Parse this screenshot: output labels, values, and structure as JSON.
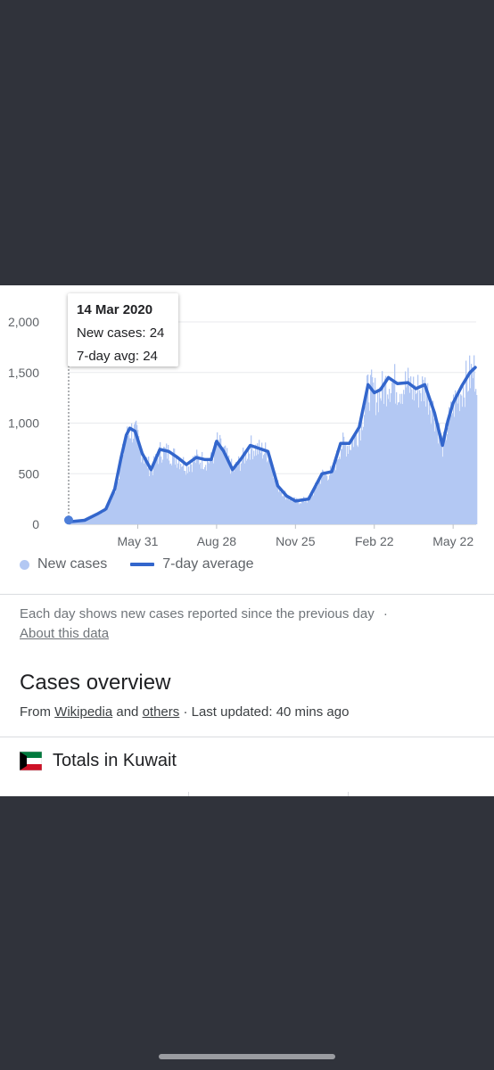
{
  "colors": {
    "background": "#30333b",
    "card": "#ffffff",
    "bar_fill": "#b3c8f3",
    "average_line": "#3366cc",
    "text_primary": "#202124",
    "text_secondary": "#70757a"
  },
  "tooltip": {
    "date": "14 Mar 2020",
    "new_cases": "New cases: 24",
    "avg": "7-day avg: 24"
  },
  "legend": {
    "new_cases": "New cases",
    "average": "7-day average"
  },
  "note": {
    "text": "Each day shows new cases reported since the previous day",
    "separator": "·",
    "about_link": "About this data"
  },
  "overview": {
    "title": "Cases overview",
    "from": "From",
    "wikipedia": "Wikipedia",
    "and": "and",
    "others": "others",
    "updated": "· Last updated: 40 mins ago"
  },
  "totals": {
    "label": "Totals in Kuwait",
    "flag_icon": "kuwait-flag-icon"
  },
  "chart_data": {
    "type": "area",
    "ylim": [
      0,
      2000
    ],
    "y_ticks": [
      "0",
      "500",
      "1,000",
      "1,500",
      "2,000"
    ],
    "x_tick_labels": [
      "May 31",
      "Aug 28",
      "Nov 25",
      "Feb 22",
      "May 22"
    ],
    "grid": true,
    "legend_position": "bottom-left",
    "series": [
      {
        "name": "New cases",
        "type": "bar"
      },
      {
        "name": "7-day average",
        "type": "line"
      }
    ],
    "x": [
      "2020-03-14",
      "2020-04-01",
      "2020-04-15",
      "2020-04-25",
      "2020-05-05",
      "2020-05-12",
      "2020-05-18",
      "2020-05-22",
      "2020-05-28",
      "2020-06-05",
      "2020-06-15",
      "2020-06-25",
      "2020-07-05",
      "2020-07-15",
      "2020-07-25",
      "2020-08-05",
      "2020-08-15",
      "2020-08-22",
      "2020-08-28",
      "2020-09-05",
      "2020-09-15",
      "2020-09-25",
      "2020-10-05",
      "2020-10-15",
      "2020-10-25",
      "2020-11-05",
      "2020-11-15",
      "2020-11-25",
      "2020-12-10",
      "2020-12-25",
      "2021-01-05",
      "2021-01-15",
      "2021-01-25",
      "2021-02-05",
      "2021-02-15",
      "2021-02-22",
      "2021-03-01",
      "2021-03-10",
      "2021-03-20",
      "2021-04-01",
      "2021-04-10",
      "2021-04-20",
      "2021-05-01",
      "2021-05-10",
      "2021-05-16",
      "2021-05-22",
      "2021-06-01",
      "2021-06-10",
      "2021-06-16"
    ],
    "values": [
      24,
      40,
      100,
      150,
      350,
      650,
      880,
      950,
      920,
      700,
      540,
      740,
      720,
      660,
      590,
      660,
      640,
      640,
      820,
      720,
      540,
      650,
      780,
      750,
      720,
      380,
      280,
      230,
      250,
      500,
      520,
      800,
      800,
      960,
      1380,
      1300,
      1330,
      1450,
      1390,
      1400,
      1340,
      1380,
      1100,
      780,
      1020,
      1200,
      1370,
      1500,
      1550
    ]
  }
}
